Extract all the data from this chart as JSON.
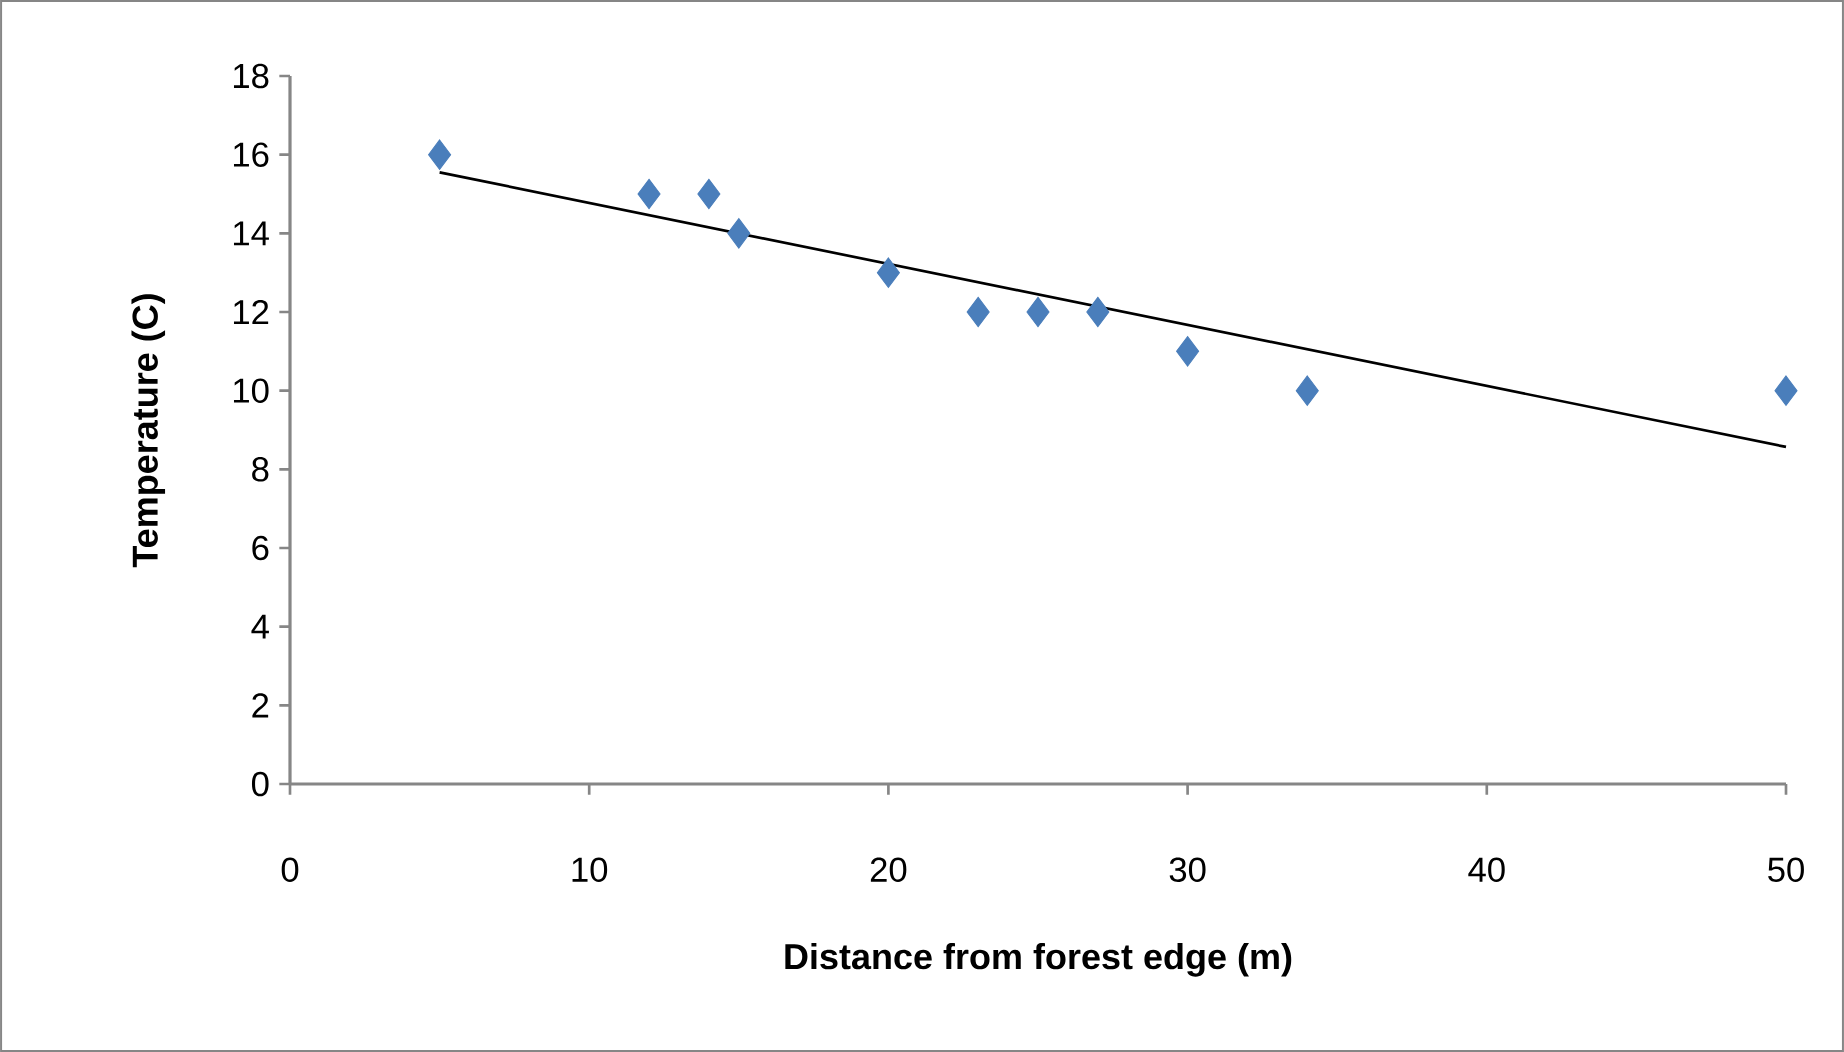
{
  "chart_data": {
    "type": "scatter",
    "xlabel": "Distance from forest edge (m)",
    "ylabel": "Temperature (C)",
    "xlim": [
      0,
      50
    ],
    "xticks": [
      0,
      10,
      20,
      30,
      40,
      50
    ],
    "ylim": [
      0,
      18
    ],
    "yticks": [
      0,
      2,
      4,
      6,
      8,
      10,
      12,
      14,
      16,
      18
    ],
    "marker": "diamond",
    "series": [
      {
        "color": "#4a7ebb",
        "x": [
          5,
          12,
          14,
          15,
          20,
          23,
          25,
          27,
          30,
          34,
          50
        ],
        "values": [
          16,
          15,
          15,
          14,
          13,
          12,
          12,
          12,
          11,
          10,
          10
        ]
      },
      {
        "type": "line",
        "color": "#000000",
        "marker": "none",
        "x": [
          5,
          50
        ],
        "values": [
          15.55,
          8.57
        ]
      }
    ]
  }
}
